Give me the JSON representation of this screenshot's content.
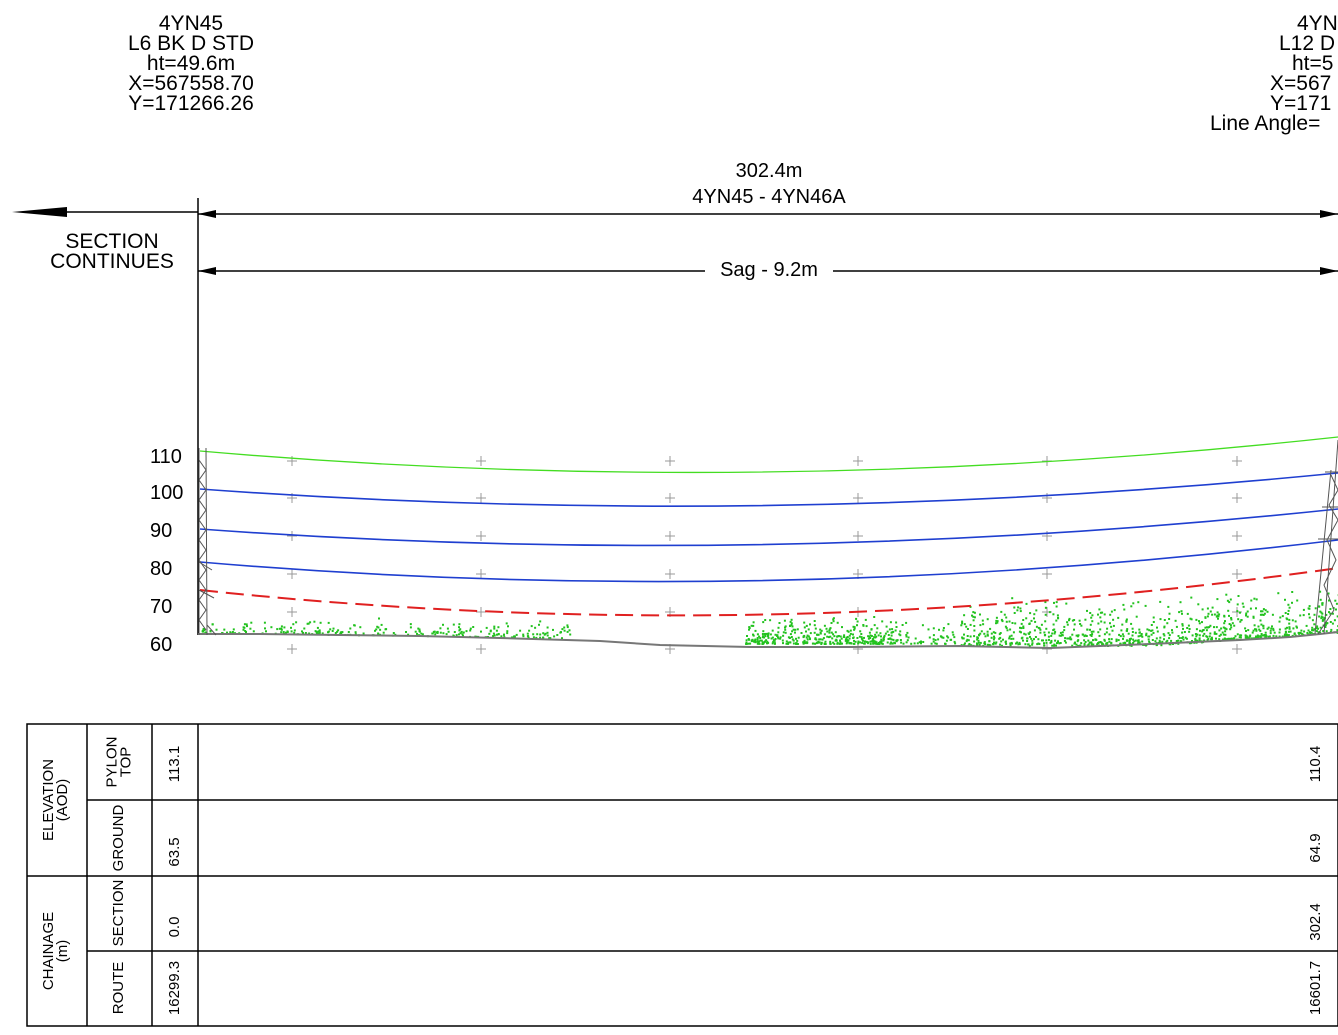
{
  "left_pylon": {
    "lines": [
      "4YN45",
      "L6 BK D STD",
      "ht=49.6m",
      "X=567558.70",
      "Y=171266.26"
    ]
  },
  "right_pylon": {
    "lines": [
      "4YN",
      "L12 D",
      "ht=5",
      "X=567",
      "Y=171",
      "Line Angle="
    ]
  },
  "span": {
    "length": "302.4m",
    "name": "4YN45 - 4YN46A",
    "sag": "Sag - 9.2m"
  },
  "section_continues": [
    "SECTION",
    "CONTINUES"
  ],
  "profile": {
    "y_ticks": [
      "110",
      "100",
      "90",
      "80",
      "70",
      "60"
    ],
    "colors": {
      "earth_wire": "#44dd22",
      "conductor": "#1f3fd0",
      "clearance": "#e02020",
      "vegetation": "#22c21e",
      "ground": "#777777"
    }
  },
  "table": {
    "elevation_header": [
      "ELEVATION",
      "(AOD)"
    ],
    "chainage_header": [
      "CHAINAGE",
      "(m)"
    ],
    "rows": [
      {
        "label": "PYLON TOP",
        "left": "113.1",
        "right": "110.4"
      },
      {
        "label": "GROUND",
        "left": "63.5",
        "right": "64.9"
      },
      {
        "label": "SECTION",
        "left": "0.0",
        "right": "302.4"
      },
      {
        "label": "ROUTE",
        "left": "16299.3",
        "right": "16601.7"
      }
    ]
  }
}
